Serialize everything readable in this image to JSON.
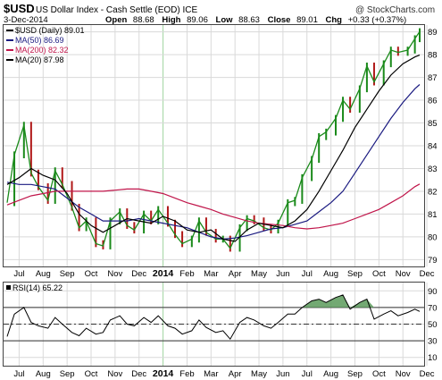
{
  "header": {
    "symbol": "$USD",
    "description": "US Dollar Index - Cash Settle (EOD) ICE",
    "watermark": "@ StockCharts.com",
    "date": "3-Dec-2014",
    "open_label": "Open",
    "open": "88.68",
    "high_label": "High",
    "high": "89.06",
    "low_label": "Low",
    "low": "88.63",
    "close_label": "Close",
    "close": "89.01",
    "chg_label": "Chg",
    "chg": "+0.33 (+0.37%)"
  },
  "legend": [
    {
      "text": "$USD (Daily) 89.01",
      "color": "#000000"
    },
    {
      "text": "MA(50) 86.69",
      "color": "#1a1a80"
    },
    {
      "text": "MA(200) 82.32",
      "color": "#c0154a"
    },
    {
      "text": "MA(20) 87.98",
      "color": "#000000"
    }
  ],
  "rsi_label": "RSI(14) 65.22",
  "colors": {
    "price": "#1a8a1a",
    "price_down": "#b01818",
    "ma50": "#1a1a80",
    "ma200": "#c0154a",
    "ma20": "#000000",
    "rsi": "#000000",
    "rsi_fill": "#5a9a5a",
    "grid": "#d9d9d9"
  },
  "chart_data": [
    {
      "type": "line",
      "title": "$USD US Dollar Index - Cash Settle (EOD) ICE",
      "x_ticks": [
        "Jul",
        "Aug",
        "Sep",
        "Oct",
        "Nov",
        "Dec",
        "2014",
        "Feb",
        "Mar",
        "Apr",
        "May",
        "Jun",
        "Jul",
        "Aug",
        "Sep",
        "Oct",
        "Nov",
        "Dec"
      ],
      "yticks": [
        79,
        80,
        81,
        82,
        83,
        84,
        85,
        86,
        87,
        88,
        89
      ],
      "ylim": [
        78.7,
        89.3
      ],
      "grid": true,
      "legend_position": "top-left",
      "series": [
        {
          "name": "$USD (Daily)",
          "x": [
            0,
            0.3,
            0.7,
            1,
            1.3,
            1.7,
            2,
            2.3,
            2.7,
            3,
            3.3,
            3.7,
            4,
            4.3,
            4.7,
            5,
            5.3,
            5.7,
            6,
            6.3,
            6.7,
            7,
            7.3,
            7.7,
            8,
            8.3,
            8.7,
            9,
            9.3,
            9.7,
            10,
            10.3,
            10.7,
            11,
            11.3,
            11.7,
            12,
            12.3,
            12.7,
            13,
            13.3,
            13.7,
            14,
            14.3,
            14.7,
            15,
            15.3,
            15.7,
            16,
            16.3,
            16.7,
            17,
            17.2
          ],
          "values": [
            81.5,
            83.6,
            84.9,
            82.8,
            82.2,
            81.6,
            82.9,
            82.3,
            81.3,
            80.4,
            80.7,
            79.7,
            79.6,
            80.7,
            81.1,
            80.5,
            80.3,
            81.0,
            80.7,
            81.2,
            80.6,
            80.1,
            79.7,
            79.9,
            80.7,
            80.2,
            79.9,
            79.9,
            79.5,
            80.4,
            80.8,
            80.7,
            80.4,
            80.3,
            80.6,
            81.5,
            81.6,
            82.6,
            83.4,
            84.4,
            84.6,
            85.2,
            86.0,
            85.6,
            86.5,
            87.5,
            86.8,
            87.6,
            88.2,
            88.1,
            88.2,
            88.7,
            89.01
          ]
        },
        {
          "name": "MA(50)",
          "x": [
            0,
            0.5,
            1,
            1.5,
            2,
            2.5,
            3,
            3.5,
            4,
            4.5,
            5,
            5.5,
            6,
            6.5,
            7,
            7.5,
            8,
            8.5,
            9,
            9.5,
            10,
            10.5,
            11,
            11.5,
            12,
            12.5,
            13,
            13.5,
            14,
            14.5,
            15,
            15.5,
            16,
            16.5,
            17,
            17.2
          ],
          "values": [
            82.4,
            82.3,
            82.3,
            82.2,
            82.1,
            81.7,
            81.3,
            81.0,
            80.7,
            80.7,
            80.7,
            80.8,
            80.7,
            80.6,
            80.5,
            80.4,
            80.2,
            80.0,
            79.9,
            79.95,
            80.05,
            80.2,
            80.35,
            80.4,
            80.55,
            80.7,
            81.1,
            81.5,
            82.0,
            82.8,
            83.6,
            84.4,
            85.2,
            85.9,
            86.5,
            86.69
          ]
        },
        {
          "name": "MA(200)",
          "x": [
            0,
            0.5,
            1,
            1.5,
            2,
            2.5,
            3,
            3.5,
            4,
            4.5,
            5,
            5.5,
            6,
            6.5,
            7,
            7.5,
            8,
            8.5,
            9,
            9.5,
            10,
            10.5,
            11,
            11.5,
            12,
            12.5,
            13,
            13.5,
            14,
            14.5,
            15,
            15.5,
            16,
            16.5,
            17,
            17.2
          ],
          "values": [
            81.4,
            81.6,
            81.8,
            81.9,
            82.0,
            82.0,
            82.0,
            82.0,
            82.0,
            82.05,
            82.1,
            82.1,
            82.0,
            81.9,
            81.7,
            81.5,
            81.35,
            81.2,
            81.0,
            80.85,
            80.7,
            80.6,
            80.55,
            80.5,
            80.4,
            80.35,
            80.4,
            80.5,
            80.6,
            80.8,
            81.0,
            81.2,
            81.5,
            81.8,
            82.2,
            82.32
          ]
        },
        {
          "name": "MA(20)",
          "x": [
            0,
            0.5,
            1,
            1.5,
            2,
            2.5,
            3,
            3.5,
            4,
            4.5,
            5,
            5.5,
            6,
            6.5,
            7,
            7.5,
            8,
            8.5,
            9,
            9.5,
            10,
            10.5,
            11,
            11.5,
            12,
            12.5,
            13,
            13.5,
            14,
            14.5,
            15,
            15.5,
            16,
            16.5,
            17,
            17.2
          ],
          "values": [
            82.3,
            82.6,
            83.0,
            82.7,
            82.5,
            81.9,
            81.0,
            80.5,
            80.2,
            80.5,
            80.8,
            80.7,
            80.6,
            80.9,
            80.7,
            80.3,
            80.2,
            80.3,
            79.9,
            79.8,
            80.3,
            80.6,
            80.5,
            80.4,
            80.7,
            81.2,
            82.0,
            82.9,
            83.8,
            84.8,
            85.6,
            86.4,
            87.1,
            87.6,
            87.9,
            87.98
          ]
        }
      ]
    },
    {
      "type": "line",
      "title": "RSI(14) 65.22",
      "yticks": [
        10,
        30,
        50,
        70,
        90
      ],
      "ylim": [
        0,
        100
      ],
      "reference_lines": [
        30,
        50,
        70
      ],
      "series": [
        {
          "name": "RSI(14)",
          "x": [
            0,
            0.3,
            0.7,
            1,
            1.3,
            1.7,
            2,
            2.3,
            2.7,
            3,
            3.3,
            3.7,
            4,
            4.3,
            4.7,
            5,
            5.3,
            5.7,
            6,
            6.3,
            6.7,
            7,
            7.3,
            7.7,
            8,
            8.3,
            8.7,
            9,
            9.3,
            9.7,
            10,
            10.3,
            10.7,
            11,
            11.3,
            11.7,
            12,
            12.3,
            12.7,
            13,
            13.3,
            13.7,
            14,
            14.3,
            14.7,
            15,
            15.3,
            15.7,
            16,
            16.3,
            16.7,
            17,
            17.2
          ],
          "values": [
            35,
            62,
            70,
            52,
            48,
            45,
            58,
            50,
            40,
            36,
            45,
            38,
            40,
            55,
            60,
            50,
            48,
            58,
            52,
            60,
            48,
            45,
            38,
            42,
            55,
            46,
            40,
            42,
            32,
            52,
            58,
            55,
            48,
            45,
            52,
            62,
            62,
            70,
            78,
            80,
            76,
            82,
            85,
            68,
            76,
            80,
            56,
            62,
            66,
            60,
            64,
            68,
            65.22
          ]
        }
      ]
    }
  ]
}
